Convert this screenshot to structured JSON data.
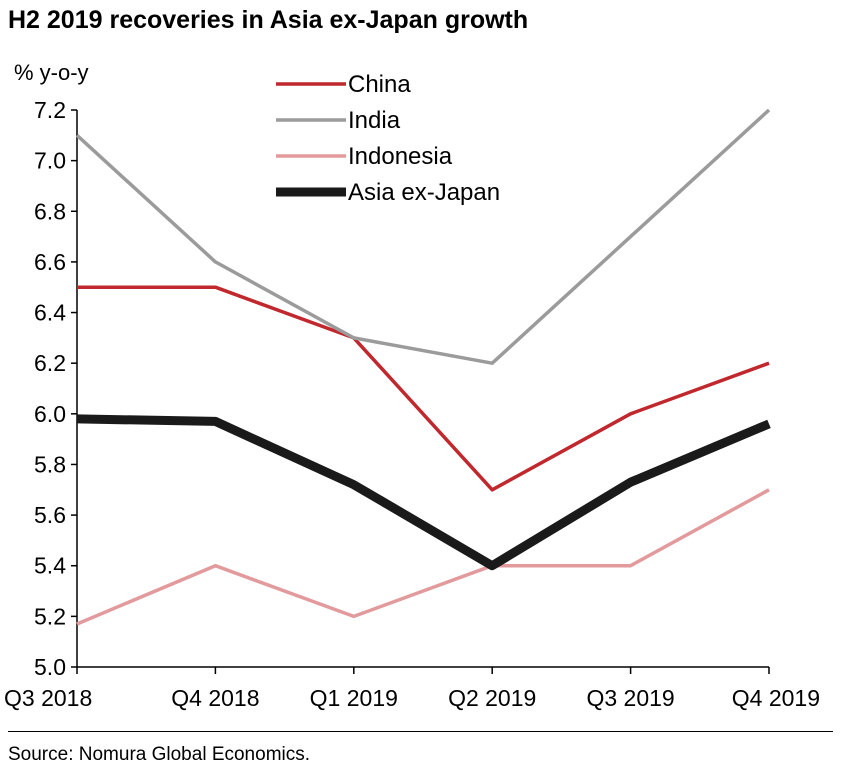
{
  "title": "H2 2019 recoveries in Asia ex-Japan growth",
  "source": "Source: Nomura Global Economics.",
  "chart_data": {
    "type": "line",
    "title": "H2 2019 recoveries in Asia ex-Japan growth",
    "ylabel": "% y-o-y",
    "xlabel": "",
    "categories": [
      "Q3 2018",
      "Q4 2018",
      "Q1 2019",
      "Q2 2019",
      "Q3 2019",
      "Q4 2019"
    ],
    "ylim": [
      5.0,
      7.2
    ],
    "yticks": [
      "5.0",
      "5.2",
      "5.4",
      "5.6",
      "5.8",
      "6.0",
      "6.2",
      "6.4",
      "6.6",
      "6.8",
      "7.0",
      "7.2"
    ],
    "grid": false,
    "legend_position": "top-center",
    "series": [
      {
        "name": "China",
        "color": "#c0282d",
        "values": [
          6.5,
          6.5,
          6.3,
          5.7,
          6.0,
          6.2
        ]
      },
      {
        "name": "India",
        "color": "#9b9b9b",
        "values": [
          7.1,
          6.6,
          6.3,
          6.2,
          6.7,
          7.2
        ]
      },
      {
        "name": "Indonesia",
        "color": "#e39a9c",
        "values": [
          5.17,
          5.4,
          5.2,
          5.4,
          5.4,
          5.7
        ]
      },
      {
        "name": "Asia ex-Japan",
        "color": "#1a1a1a",
        "values": [
          5.98,
          5.97,
          5.72,
          5.4,
          5.73,
          5.96
        ]
      }
    ]
  }
}
